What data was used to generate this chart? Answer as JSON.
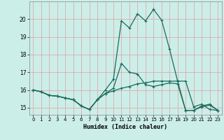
{
  "xlabel": "Humidex (Indice chaleur)",
  "bg_color": "#cceee8",
  "grid_color": "#ddaaaa",
  "line_color": "#1a6b5e",
  "xlim": [
    -0.5,
    23.5
  ],
  "ylim": [
    14.6,
    21.0
  ],
  "yticks": [
    15,
    16,
    17,
    18,
    19,
    20
  ],
  "xticks": [
    0,
    1,
    2,
    3,
    4,
    5,
    6,
    7,
    8,
    9,
    10,
    11,
    12,
    13,
    14,
    15,
    16,
    17,
    18,
    19,
    20,
    21,
    22,
    23
  ],
  "series": [
    [
      16.0,
      15.9,
      15.7,
      15.65,
      15.55,
      15.45,
      15.1,
      14.9,
      15.45,
      15.8,
      16.1,
      17.5,
      17.0,
      16.9,
      16.3,
      16.2,
      16.3,
      16.4,
      16.35,
      14.85,
      14.85,
      15.1,
      15.2,
      14.85
    ],
    [
      16.0,
      15.9,
      15.7,
      15.65,
      15.55,
      15.45,
      15.1,
      14.9,
      15.45,
      16.0,
      16.6,
      19.9,
      19.5,
      20.3,
      19.9,
      20.55,
      19.95,
      18.3,
      16.5,
      16.5,
      15.05,
      15.2,
      14.9,
      14.85
    ],
    [
      16.0,
      15.9,
      15.7,
      15.65,
      15.55,
      15.45,
      15.1,
      14.9,
      15.45,
      15.8,
      15.95,
      16.1,
      16.2,
      16.35,
      16.4,
      16.5,
      16.5,
      16.5,
      16.5,
      14.85,
      14.85,
      15.05,
      15.15,
      14.85
    ]
  ]
}
